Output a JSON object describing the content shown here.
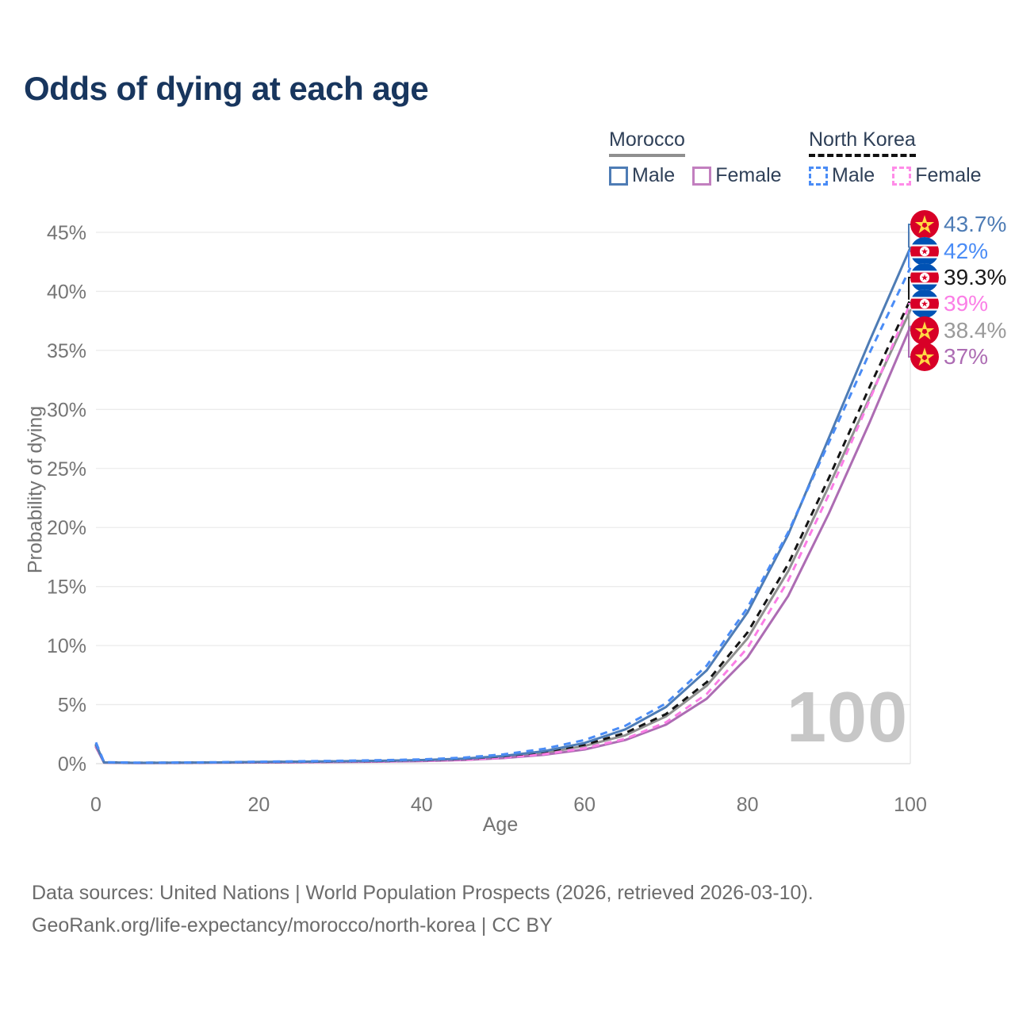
{
  "title": "Odds of dying at each age",
  "legend": {
    "groups": [
      {
        "label": "Morocco",
        "style": "solid",
        "underline_color": "#8f8f8f",
        "items": [
          {
            "label": "Male",
            "color": "#4e7cb5"
          },
          {
            "label": "Female",
            "color": "#c27fbf"
          }
        ]
      },
      {
        "label": "North Korea",
        "style": "dashed",
        "underline_color": "#111111",
        "items": [
          {
            "label": "Male",
            "color": "#4a8cf6"
          },
          {
            "label": "Female",
            "color": "#ff8ce8"
          }
        ]
      }
    ]
  },
  "watermark": "100",
  "footer": {
    "line1": "Data sources: United Nations | World Population Prospects (2026, retrieved 2026-03-10).",
    "line2": "GeoRank.org/life-expectancy/morocco/north-korea | CC BY"
  },
  "chart_data": {
    "type": "line",
    "title": "Odds of dying at each age",
    "xlabel": "Age",
    "ylabel": "Probability of dying",
    "xlim": [
      0,
      100
    ],
    "ylim": [
      0,
      45
    ],
    "x_ticks": [
      0,
      20,
      40,
      60,
      80,
      100
    ],
    "y_ticks_percent": [
      0,
      5,
      10,
      15,
      20,
      25,
      30,
      35,
      40,
      45
    ],
    "grid": "horizontal",
    "current_age_marker": 100,
    "ages": [
      0,
      1,
      5,
      10,
      15,
      20,
      25,
      30,
      35,
      40,
      45,
      50,
      55,
      60,
      65,
      70,
      75,
      80,
      85,
      90,
      95,
      100
    ],
    "series": [
      {
        "name": "Morocco both sexes",
        "country": "Morocco",
        "sex": "Both",
        "line": "solid",
        "color": "#909090",
        "values": [
          1.5,
          0.09,
          0.06,
          0.07,
          0.09,
          0.12,
          0.14,
          0.17,
          0.2,
          0.26,
          0.36,
          0.56,
          0.9,
          1.5,
          2.4,
          4.0,
          6.6,
          10.6,
          16.3,
          23.5,
          31.0,
          38.4
        ]
      },
      {
        "name": "Morocco female",
        "country": "Morocco",
        "sex": "Female",
        "line": "solid",
        "color": "#ad6cb3",
        "values": [
          1.4,
          0.08,
          0.05,
          0.06,
          0.08,
          0.1,
          0.12,
          0.14,
          0.17,
          0.22,
          0.3,
          0.47,
          0.75,
          1.2,
          2.0,
          3.3,
          5.5,
          9.0,
          14.2,
          21.2,
          28.9,
          37.0
        ]
      },
      {
        "name": "North Korea female",
        "country": "North Korea",
        "sex": "Female",
        "line": "dashed",
        "color": "#fb7ee6",
        "values": [
          1.5,
          0.1,
          0.06,
          0.07,
          0.09,
          0.11,
          0.13,
          0.16,
          0.19,
          0.24,
          0.33,
          0.5,
          0.8,
          1.3,
          2.1,
          3.5,
          5.9,
          9.8,
          15.5,
          22.8,
          30.8,
          39.0
        ]
      },
      {
        "name": "North Korea both sexes",
        "country": "North Korea",
        "sex": "Both",
        "line": "dashed",
        "color": "#141414",
        "values": [
          1.6,
          0.11,
          0.07,
          0.08,
          0.1,
          0.13,
          0.16,
          0.19,
          0.23,
          0.29,
          0.4,
          0.62,
          1.0,
          1.6,
          2.6,
          4.2,
          6.9,
          11.1,
          16.9,
          24.2,
          31.9,
          39.3
        ]
      },
      {
        "name": "Morocco male",
        "country": "Morocco",
        "sex": "Male",
        "line": "solid",
        "color": "#4e7cb5",
        "values": [
          1.6,
          0.1,
          0.07,
          0.08,
          0.1,
          0.14,
          0.17,
          0.2,
          0.24,
          0.3,
          0.42,
          0.65,
          1.05,
          1.75,
          2.9,
          4.8,
          7.9,
          12.8,
          19.4,
          27.6,
          35.8,
          43.7
        ]
      },
      {
        "name": "North Korea male",
        "country": "North Korea",
        "sex": "Male",
        "line": "dashed",
        "color": "#4a8cf6",
        "values": [
          1.8,
          0.12,
          0.08,
          0.09,
          0.12,
          0.16,
          0.2,
          0.24,
          0.29,
          0.36,
          0.5,
          0.78,
          1.25,
          2.0,
          3.2,
          5.1,
          8.3,
          13.2,
          19.6,
          27.2,
          34.8,
          42.0
        ]
      }
    ],
    "end_labels": [
      {
        "text": "43.7%",
        "value": 43.7,
        "series": "Morocco male",
        "flag": "morocco",
        "color": "#4e7cb5"
      },
      {
        "text": "42%",
        "value": 42.0,
        "series": "North Korea male",
        "flag": "north-korea",
        "color": "#4a8cf6"
      },
      {
        "text": "39.3%",
        "value": 39.3,
        "series": "North Korea both sexes",
        "flag": "north-korea",
        "color": "#1a1a1a"
      },
      {
        "text": "39%",
        "value": 39.0,
        "series": "North Korea female",
        "flag": "north-korea",
        "color": "#fb7ee6"
      },
      {
        "text": "38.4%",
        "value": 38.4,
        "series": "Morocco both sexes",
        "flag": "morocco",
        "color": "#9a9a9a"
      },
      {
        "text": "37%",
        "value": 37.0,
        "series": "Morocco female",
        "flag": "morocco",
        "color": "#ad6cb3"
      }
    ]
  }
}
